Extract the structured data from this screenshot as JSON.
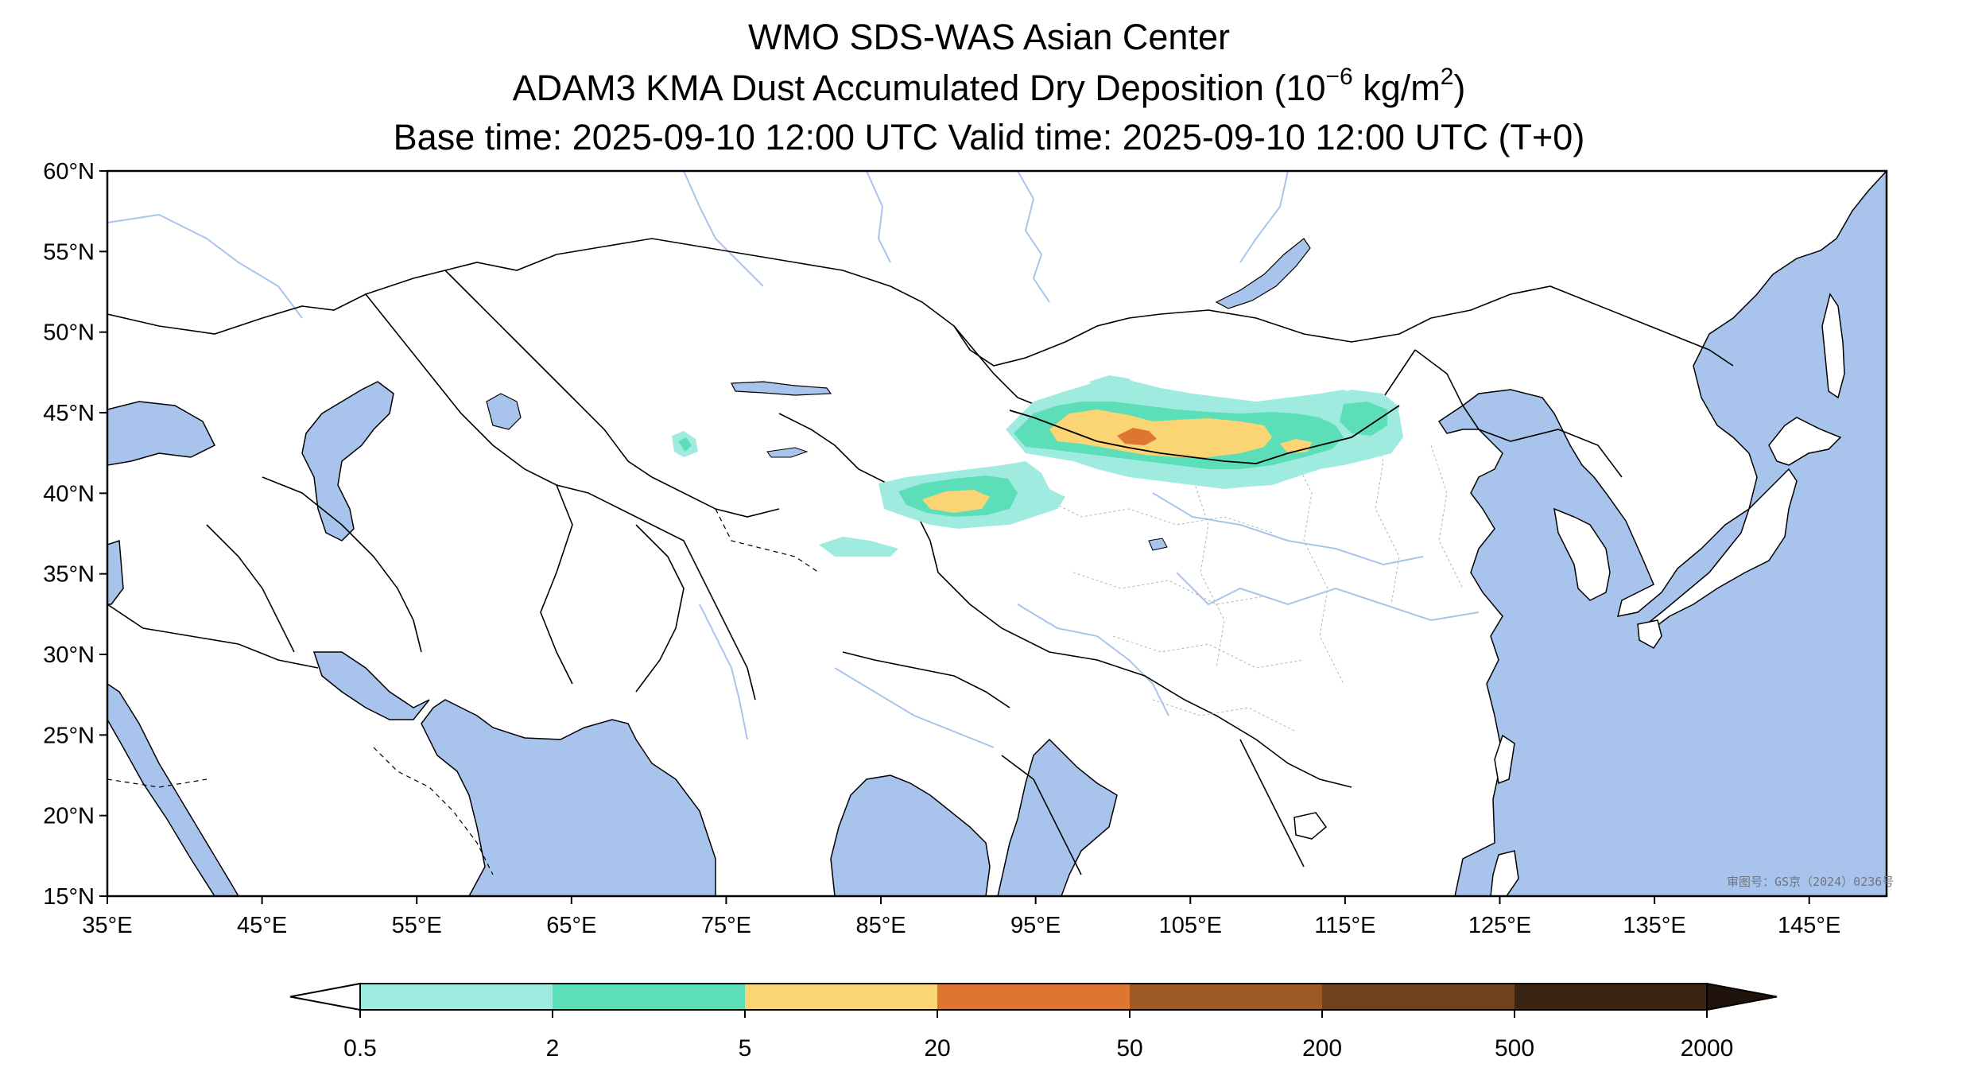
{
  "title": {
    "line1": "WMO SDS-WAS Asian Center",
    "line2_main": "ADAM3 KMA Dust Accumulated Dry Deposition (10",
    "line2_exp1": "−6",
    "line2_mid": " kg/m",
    "line2_exp2": "2",
    "line2_end": ")",
    "line3": "Base time: 2025-09-10 12:00 UTC Valid time: 2025-09-10 12:00 UTC (T+0)"
  },
  "map": {
    "lon_range": [
      35,
      150
    ],
    "lat_range": [
      15,
      60
    ],
    "lat_ticks": [
      "60°N",
      "55°N",
      "50°N",
      "45°N",
      "40°N",
      "35°N",
      "30°N",
      "25°N",
      "20°N",
      "15°N"
    ],
    "lon_ticks": [
      "35°E",
      "45°E",
      "55°E",
      "65°E",
      "75°E",
      "85°E",
      "95°E",
      "105°E",
      "115°E",
      "125°E",
      "135°E",
      "145°E"
    ],
    "stamp": "审图号：GS京（2024）0236号",
    "colors": {
      "water": "#a9c4ec",
      "land": "#ffffff",
      "border": "#000000",
      "river": "#a9c4ec",
      "province": "#b5b5b5"
    }
  },
  "colorbar": {
    "ticks": [
      "0.5",
      "2",
      "5",
      "20",
      "50",
      "200",
      "500",
      "2000"
    ],
    "colors": [
      "#a0ebe0",
      "#5cdfb8",
      "#fbd574",
      "#dc7630",
      "#9c5b26",
      "#6d421c",
      "#3a2414"
    ],
    "under_color": "#ffffff",
    "over_color": "#1f130c"
  }
}
